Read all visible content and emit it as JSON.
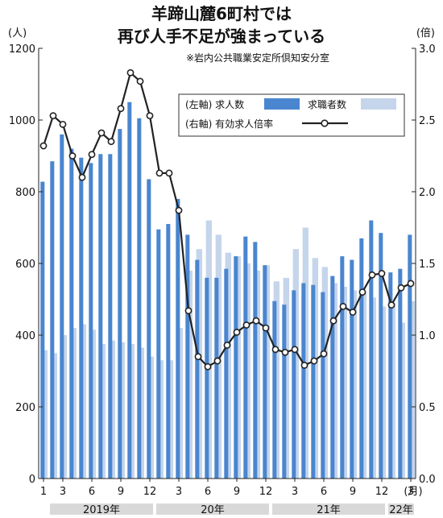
{
  "chart_data": {
    "type": "bar+line",
    "title_line1": "羊蹄山麓6町村では",
    "title_line2": "再び人手不足が強まっている",
    "source": "※岩内公共職業安定所倶知安分室",
    "left_unit": "(人)",
    "right_unit": "(倍)",
    "month_unit": "(月)",
    "y_left_ticks": [
      "0",
      "200",
      "400",
      "600",
      "800",
      "1000",
      "1200"
    ],
    "y_right_ticks": [
      "0.0",
      "0.5",
      "1.0",
      "1.5",
      "2.0",
      "2.5",
      "3.0"
    ],
    "ylim_left": [
      0,
      1200
    ],
    "ylim_right": [
      0,
      3.0
    ],
    "x_tick_labels": [
      "1",
      "3",
      "6",
      "9",
      "12",
      "3",
      "6",
      "9",
      "12",
      "3",
      "6",
      "9",
      "12",
      "3"
    ],
    "x_tick_index": [
      0,
      2,
      5,
      8,
      11,
      14,
      17,
      20,
      23,
      26,
      29,
      32,
      35,
      38
    ],
    "years": [
      {
        "label": "2019年",
        "start": 0,
        "end": 11
      },
      {
        "label": "20年",
        "start": 12,
        "end": 23
      },
      {
        "label": "21年",
        "start": 24,
        "end": 35
      },
      {
        "label": "22年",
        "start": 36,
        "end": 38
      }
    ],
    "legend": {
      "job_offers": "(左軸) 求人数",
      "job_seekers": "求職者数",
      "ratio": "(右軸) 有効求人倍率"
    },
    "colors": {
      "job_offers": "#4a86cf",
      "job_seekers": "#c5d5eb",
      "line": "#222222",
      "year_band": "#d9d9d9"
    },
    "series": [
      {
        "name": "求人数",
        "values": [
          828,
          885,
          960,
          920,
          895,
          880,
          905,
          905,
          975,
          1050,
          1005,
          835,
          695,
          710,
          780,
          680,
          610,
          560,
          560,
          585,
          620,
          675,
          660,
          595,
          495,
          485,
          525,
          545,
          540,
          520,
          565,
          620,
          610,
          670,
          720,
          685,
          575,
          585,
          680
        ]
      },
      {
        "name": "求職者数",
        "values": [
          358,
          350,
          400,
          420,
          430,
          415,
          375,
          385,
          380,
          375,
          365,
          340,
          330,
          330,
          420,
          580,
          640,
          720,
          680,
          630,
          620,
          600,
          580,
          595,
          550,
          560,
          640,
          700,
          615,
          590,
          545,
          535,
          525,
          520,
          505,
          480,
          490,
          435,
          495
        ]
      },
      {
        "name": "有効求人倍率",
        "values": [
          2.32,
          2.53,
          2.47,
          2.25,
          2.1,
          2.26,
          2.41,
          2.35,
          2.58,
          2.83,
          2.77,
          2.53,
          2.13,
          2.13,
          1.87,
          1.17,
          0.85,
          0.78,
          0.82,
          0.93,
          1.02,
          1.07,
          1.1,
          1.05,
          0.9,
          0.88,
          0.9,
          0.79,
          0.82,
          0.87,
          1.1,
          1.2,
          1.16,
          1.3,
          1.42,
          1.43,
          1.21,
          1.33,
          1.36
        ]
      }
    ]
  }
}
